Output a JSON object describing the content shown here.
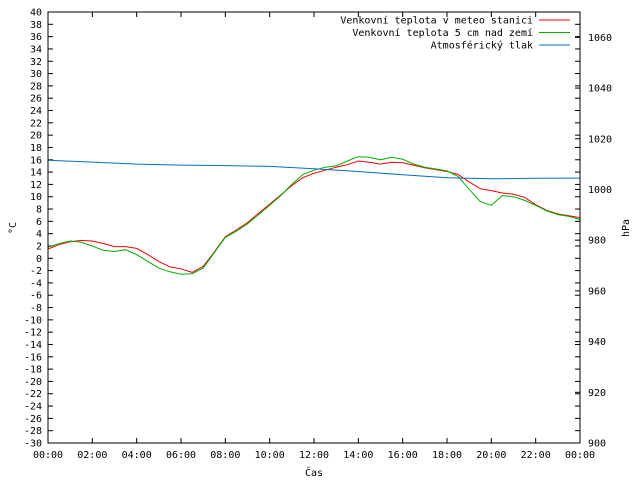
{
  "chart_data": {
    "type": "line",
    "xlabel": "Čas",
    "ylabel": "°C",
    "y2label": "hPa",
    "x_ticks": [
      "00:00",
      "02:00",
      "04:00",
      "06:00",
      "08:00",
      "10:00",
      "12:00",
      "14:00",
      "16:00",
      "18:00",
      "20:00",
      "22:00",
      "00:00"
    ],
    "xlim": [
      0,
      24
    ],
    "ylim": [
      -30,
      40
    ],
    "y2lim": [
      900,
      1070
    ],
    "y_ticks": [
      40,
      38,
      36,
      34,
      32,
      30,
      28,
      26,
      24,
      22,
      20,
      18,
      16,
      14,
      12,
      10,
      8,
      6,
      4,
      2,
      0,
      -2,
      -4,
      -6,
      -8,
      -10,
      -12,
      -14,
      -16,
      -18,
      -20,
      -22,
      -24,
      -26,
      -28,
      -30
    ],
    "y2_ticks": [
      1060,
      1040,
      1020,
      1000,
      980,
      960,
      940,
      920,
      900
    ],
    "grid": false,
    "legend_position": "top-right",
    "series": [
      {
        "name": "Venkovní teplota v meteo stanici",
        "color": "#ff0000",
        "axis": "y",
        "x": [
          0,
          0.5,
          1,
          1.5,
          2,
          2.5,
          3,
          3.5,
          4,
          4.5,
          5,
          5.5,
          6,
          6.5,
          7,
          7.5,
          8,
          8.5,
          9,
          9.5,
          10,
          10.5,
          11,
          11.5,
          12,
          12.5,
          13,
          13.5,
          14,
          14.5,
          15,
          15.5,
          16,
          16.5,
          17,
          17.5,
          18,
          18.5,
          19,
          19.5,
          20,
          20.5,
          21,
          21.5,
          22,
          22.5,
          23,
          23.5,
          24
        ],
        "y": [
          1.5,
          2.2,
          2.7,
          2.9,
          2.8,
          2.4,
          1.9,
          1.9,
          1.6,
          0.6,
          -0.5,
          -1.4,
          -1.7,
          -2.3,
          -1.3,
          1.0,
          3.5,
          4.6,
          5.8,
          7.3,
          8.8,
          10.3,
          11.8,
          13.1,
          13.8,
          14.3,
          14.8,
          15.2,
          15.8,
          15.6,
          15.3,
          15.6,
          15.5,
          15.1,
          14.7,
          14.4,
          14.1,
          13.6,
          12.4,
          11.3,
          11.0,
          10.6,
          10.4,
          9.9,
          8.7,
          7.8,
          7.2,
          6.9,
          6.6
        ]
      },
      {
        "name": "Venkovní teplota 5 cm nad zemí",
        "color": "#00b000",
        "axis": "y",
        "x": [
          0,
          0.5,
          1,
          1.5,
          2,
          2.5,
          3,
          3.5,
          4,
          4.5,
          5,
          5.5,
          6,
          6.5,
          7,
          7.5,
          8,
          8.5,
          9,
          9.5,
          10,
          10.5,
          11,
          11.5,
          12,
          12.5,
          13,
          13.5,
          14,
          14.5,
          15,
          15.5,
          16,
          16.5,
          17,
          17.5,
          18,
          18.5,
          19,
          19.5,
          20,
          20.5,
          21,
          21.5,
          22,
          22.5,
          23,
          23.5,
          24
        ],
        "y": [
          1.8,
          2.4,
          2.8,
          2.6,
          2.0,
          1.3,
          1.1,
          1.4,
          0.6,
          -0.5,
          -1.6,
          -2.2,
          -2.6,
          -2.5,
          -1.6,
          0.9,
          3.4,
          4.4,
          5.6,
          7.1,
          8.6,
          10.2,
          12.0,
          13.6,
          14.3,
          14.8,
          15.0,
          15.8,
          16.5,
          16.4,
          16.0,
          16.4,
          16.1,
          15.3,
          14.8,
          14.5,
          14.2,
          13.3,
          11.2,
          9.2,
          8.6,
          10.2,
          10.0,
          9.4,
          8.6,
          7.7,
          7.1,
          6.8,
          6.3
        ]
      },
      {
        "name": "Atmosférický tlak",
        "color": "#0070c0",
        "axis": "y2",
        "x": [
          0,
          2,
          4,
          6,
          8,
          10,
          12,
          14,
          16,
          18,
          20,
          22,
          24
        ],
        "y": [
          1011.5,
          1010.8,
          1010.0,
          1009.6,
          1009.4,
          1009.1,
          1008.2,
          1007.1,
          1005.8,
          1004.6,
          1004.2,
          1004.4,
          1004.5
        ]
      }
    ]
  }
}
